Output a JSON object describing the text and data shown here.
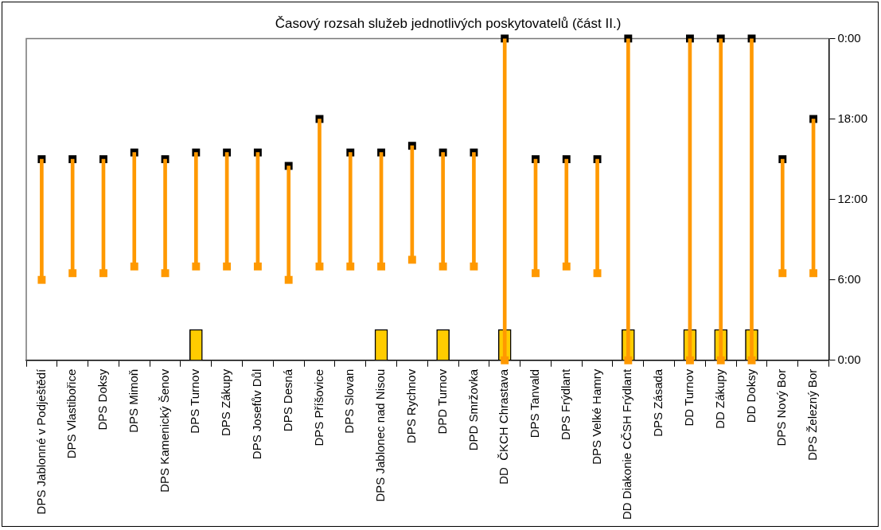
{
  "chart_data": {
    "type": "bar",
    "title": "Časový rozsah služeb jednotlivých poskytovatelů (část II.)",
    "categories": [
      "DPS Jablonné v Podještědí",
      "DPS Vlastibořice",
      "DPS Doksy",
      "DPS Mimoň",
      "DPS Kamenický Šenov",
      "DPS Turnov",
      "DPS Zákupy",
      "DPS Josefův Důl",
      "DPS Desná",
      "DPS Příšovice",
      "DPS Slovan",
      "DPS Jablonec nad Nisou",
      "DPS Rychnov",
      "DPD Turnov",
      "DPD Smržovka",
      "DD  ČKCH Chrastava",
      "DPS Tanvald",
      "DPS Frýdlant",
      "DPS Velké Hamry",
      "DD Diakonie CČSH Frýdlant",
      "DPS Zásada",
      "DD Turnov",
      "DD Zákupy",
      "DD Doksy",
      "DPS Nový Bor",
      "DPS Železný Bor"
    ],
    "series": [
      {
        "color": "#ffcc00",
        "values": [
          null,
          null,
          null,
          null,
          null,
          2.3,
          null,
          null,
          null,
          null,
          null,
          2.3,
          null,
          2.3,
          null,
          2.3,
          null,
          null,
          null,
          2.3,
          null,
          2.3,
          2.3,
          2.3,
          null,
          null
        ]
      },
      {
        "color": "#ff9900",
        "base": [
          6,
          6.5,
          6.5,
          7,
          6.5,
          7,
          7,
          7,
          6,
          7,
          7,
          7,
          7.5,
          7,
          7,
          0,
          6.5,
          7,
          6.5,
          0,
          null,
          0,
          0,
          0,
          6.5,
          6.5
        ],
        "values": [
          9,
          8.5,
          8.5,
          8.5,
          8.5,
          8.5,
          8.5,
          8.5,
          8.5,
          11,
          8.5,
          8.5,
          8.5,
          8.5,
          8.5,
          24,
          8.5,
          8,
          8.5,
          24,
          null,
          24,
          24,
          24,
          8.5,
          11.5
        ]
      },
      {
        "type": "scatter",
        "color": "#ff9900",
        "marker": "square",
        "values": [
          6,
          6.5,
          6.5,
          7,
          6.5,
          7,
          7,
          7,
          6,
          7,
          7,
          7,
          7.5,
          7,
          7,
          0,
          6.5,
          7,
          6.5,
          0,
          null,
          0,
          0,
          0,
          6.5,
          6.5
        ]
      },
      {
        "type": "scatter",
        "color": "#000000",
        "marker": "square",
        "values": [
          15,
          15,
          15,
          15.5,
          15,
          15.5,
          15.5,
          15.5,
          14.5,
          18,
          15.5,
          15.5,
          16,
          15.5,
          15.5,
          24,
          15,
          15,
          15,
          24,
          null,
          24,
          24,
          24,
          15,
          18
        ]
      }
    ],
    "ylim": [
      0,
      24
    ],
    "yticks": [
      {
        "value": 0,
        "label": "0:00"
      },
      {
        "value": 6,
        "label": "6:00"
      },
      {
        "value": 12,
        "label": "12:00"
      },
      {
        "value": 18,
        "label": "18:00"
      },
      {
        "value": 24,
        "label": "0:00"
      }
    ],
    "grid": false,
    "legend": false
  }
}
